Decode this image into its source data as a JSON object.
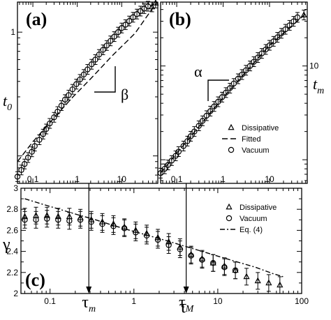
{
  "chart_data": [
    {
      "id": "a",
      "type": "scatter",
      "panel_label": "(a)",
      "xscale": "log",
      "yscale": "log",
      "xlim": [
        0.045,
        65
      ],
      "ylim": [
        0.06,
        1.75
      ],
      "xticks": [
        {
          "value": 0.1,
          "label": "0.1"
        },
        {
          "value": 1,
          "label": "1"
        },
        {
          "value": 10,
          "label": "10"
        }
      ],
      "yticks": [
        {
          "value": 1,
          "label": "1"
        }
      ],
      "ylabel": "t",
      "ylabel_sub": "0",
      "slope_label": "β",
      "series": [
        {
          "name": "Dissipative",
          "marker": "triangle",
          "x": [
            48,
            58
          ],
          "y": [
            1.6,
            1.72
          ]
        },
        {
          "name": "Vacuum",
          "marker": "circle",
          "x": [
            0.045,
            0.055,
            0.065,
            0.078,
            0.095,
            0.11,
            0.14,
            0.17,
            0.2,
            0.24,
            0.3,
            0.36,
            0.44,
            0.53,
            0.64,
            0.78,
            0.95,
            1.15,
            1.4,
            1.7,
            2.1,
            2.55,
            3.1,
            3.8,
            4.6,
            5.6,
            6.8,
            8.3,
            10,
            12.2,
            14.8,
            18,
            22,
            26.5,
            32,
            39
          ],
          "y": [
            0.068,
            0.077,
            0.086,
            0.097,
            0.108,
            0.12,
            0.135,
            0.15,
            0.165,
            0.183,
            0.205,
            0.228,
            0.255,
            0.285,
            0.31,
            0.345,
            0.38,
            0.415,
            0.455,
            0.5,
            0.55,
            0.6,
            0.66,
            0.72,
            0.78,
            0.85,
            0.92,
            1.0,
            1.08,
            1.15,
            1.23,
            1.32,
            1.4,
            1.48,
            1.55,
            1.62
          ]
        },
        {
          "name": "Fitted",
          "line": "dashed",
          "x": [
            0.045,
            0.1,
            0.2,
            0.4,
            0.8,
            2,
            6,
            20,
            60
          ],
          "y": [
            0.09,
            0.13,
            0.172,
            0.228,
            0.3,
            0.42,
            0.64,
            0.98,
            1.72
          ]
        }
      ]
    },
    {
      "id": "b",
      "type": "scatter",
      "panel_label": "(b)",
      "xscale": "log",
      "yscale": "log",
      "xlim": [
        0.045,
        65
      ],
      "ylim": [
        0.56,
        48
      ],
      "xticks": [
        {
          "value": 0.1,
          "label": "0.1"
        },
        {
          "value": 1,
          "label": "1"
        },
        {
          "value": 10,
          "label": "10"
        }
      ],
      "yticks": [
        {
          "value": 10,
          "label": "10"
        }
      ],
      "ylabel": "t",
      "ylabel_sub": "m",
      "slope_label": "α",
      "legend": {
        "position": "bottom-right",
        "entries": [
          "Dissipative",
          "Fitted",
          "Vacuum"
        ]
      },
      "series": [
        {
          "name": "Dissipative",
          "marker": "triangle",
          "x": [
            55
          ],
          "y": [
            35
          ]
        },
        {
          "name": "Vacuum",
          "marker": "circle",
          "x": [
            0.045,
            0.055,
            0.065,
            0.078,
            0.095,
            0.11,
            0.14,
            0.17,
            0.2,
            0.24,
            0.3,
            0.36,
            0.44,
            0.53,
            0.64,
            0.78,
            0.95,
            1.15,
            1.4,
            1.7,
            2.1,
            2.55,
            3.1,
            3.8,
            4.6,
            5.6,
            6.8,
            8.3,
            10,
            12.2,
            14.8,
            18,
            22,
            27,
            33,
            40
          ],
          "y": [
            0.72,
            0.8,
            0.88,
            0.98,
            1.1,
            1.22,
            1.4,
            1.58,
            1.78,
            2.0,
            2.3,
            2.6,
            2.95,
            3.3,
            3.7,
            4.15,
            4.65,
            5.2,
            5.8,
            6.5,
            7.3,
            8.1,
            9.0,
            10.0,
            11.1,
            12.3,
            13.6,
            15.0,
            16.6,
            18.3,
            20.2,
            22.3,
            24.6,
            27.1,
            29.9,
            33.0
          ]
        },
        {
          "name": "Fitted",
          "line": "dashed",
          "x": [
            0.045,
            0.1,
            1,
            10,
            60
          ],
          "y": [
            0.72,
            1.17,
            4.6,
            16.6,
            36
          ]
        }
      ]
    },
    {
      "id": "c",
      "type": "scatter",
      "panel_label": "(c)",
      "xscale": "log",
      "yscale": "linear",
      "xlim": [
        0.045,
        100
      ],
      "ylim": [
        2.0,
        3.0
      ],
      "xticks": [
        {
          "value": 0.1,
          "label": "0.1"
        },
        {
          "value": 1,
          "label": "1"
        },
        {
          "value": 10,
          "label": "10"
        },
        {
          "value": 100,
          "label": "100"
        }
      ],
      "yticks": [
        {
          "value": 2,
          "label": "2"
        },
        {
          "value": 2.2,
          "label": "2.2"
        },
        {
          "value": 2.4,
          "label": "2.4"
        },
        {
          "value": 2.6,
          "label": "2.6"
        },
        {
          "value": 2.8,
          "label": "2.8"
        },
        {
          "value": 3,
          "label": "3"
        }
      ],
      "xlabel": "τ",
      "ylabel": "γ",
      "annotations": [
        {
          "text": "τ",
          "sub": "m",
          "x": 0.29
        },
        {
          "text": "τ",
          "sub": "M",
          "x": 4.2
        }
      ],
      "legend": {
        "position": "top-right",
        "entries": [
          "Dissipative",
          "Vacuum",
          "Eq. (4)"
        ]
      },
      "series": [
        {
          "name": "Dissipative",
          "marker": "triangle",
          "x": [
            0.05,
            0.068,
            0.092,
            0.125,
            0.17,
            0.23,
            0.31,
            0.42,
            0.57,
            0.77,
            1.05,
            1.42,
            1.93,
            2.6,
            3.55,
            4.8,
            6.5,
            8.8,
            12,
            16.2,
            22,
            30,
            40.5,
            55
          ],
          "y": [
            2.73,
            2.74,
            2.74,
            2.73,
            2.73,
            2.72,
            2.7,
            2.68,
            2.66,
            2.63,
            2.6,
            2.57,
            2.53,
            2.49,
            2.44,
            2.37,
            2.33,
            2.29,
            2.26,
            2.22,
            2.16,
            2.12,
            2.1,
            2.08
          ]
        },
        {
          "name": "Vacuum",
          "marker": "circle",
          "x": [
            0.05,
            0.068,
            0.092,
            0.125,
            0.17,
            0.23,
            0.31,
            0.42,
            0.57,
            0.77,
            1.05,
            1.42,
            1.93,
            2.6,
            3.55,
            4.8,
            6.5,
            8.8,
            12,
            16.2
          ],
          "y": [
            2.7,
            2.7,
            2.71,
            2.7,
            2.69,
            2.7,
            2.68,
            2.66,
            2.64,
            2.62,
            2.58,
            2.55,
            2.51,
            2.46,
            2.42,
            2.36,
            2.32,
            2.29,
            2.25,
            2.22
          ]
        },
        {
          "name": "Eq. (4)",
          "line": "dashdot",
          "x": [
            0.05,
            0.08,
            0.13,
            0.21,
            0.35,
            0.55,
            0.9,
            1.5,
            2.5,
            4,
            6.5,
            10.5,
            17,
            28,
            45,
            60
          ],
          "y": [
            2.9,
            2.85,
            2.8,
            2.75,
            2.7,
            2.65,
            2.6,
            2.55,
            2.5,
            2.45,
            2.4,
            2.35,
            2.3,
            2.25,
            2.19,
            2.16
          ]
        }
      ]
    }
  ]
}
